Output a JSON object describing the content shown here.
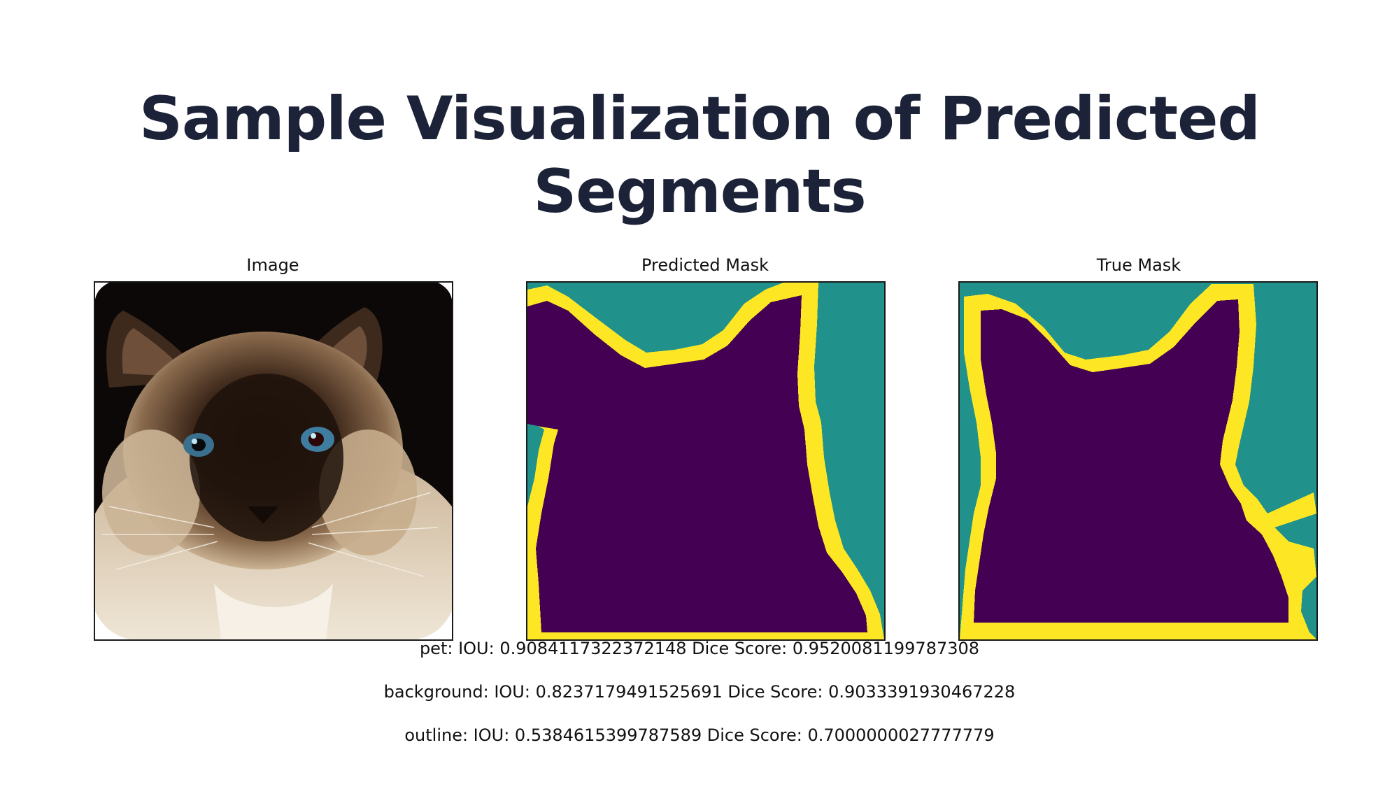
{
  "slide": {
    "title_line1": "Sample Visualization of Predicted",
    "title_line2": "Segments"
  },
  "panels": [
    {
      "title": "Image"
    },
    {
      "title": "Predicted Mask"
    },
    {
      "title": "True Mask"
    }
  ],
  "mask_colors": {
    "pet": "#440154",
    "background": "#21918c",
    "outline": "#fde725"
  },
  "metrics": [
    {
      "text": "pet: IOU: 0.9084117322372148 Dice Score: 0.9520081199787308"
    },
    {
      "text": "background: IOU: 0.8237179491525691 Dice Score: 0.9033391930467228"
    },
    {
      "text": "outline: IOU: 0.5384615399787589 Dice Score: 0.7000000027777779"
    }
  ]
}
